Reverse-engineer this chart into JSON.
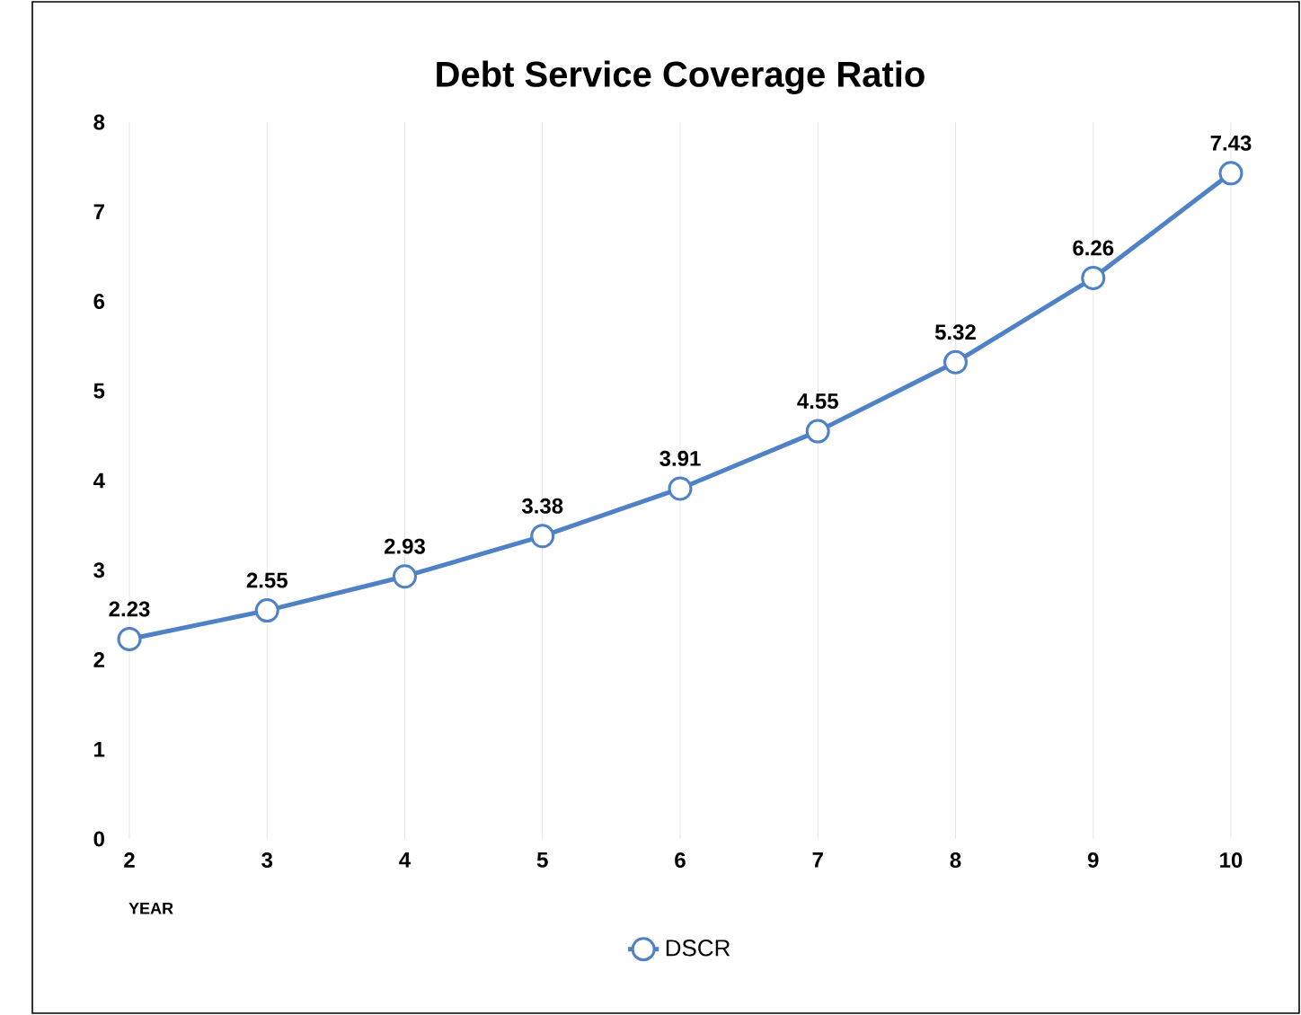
{
  "chart_data": {
    "type": "line",
    "title": "Debt Service Coverage Ratio",
    "xlabel": "YEAR",
    "x": [
      2,
      3,
      4,
      5,
      6,
      7,
      8,
      9,
      10
    ],
    "series": [
      {
        "name": "DSCR",
        "color": "#4f81c7",
        "values": [
          2.23,
          2.55,
          2.93,
          3.38,
          3.91,
          4.55,
          5.32,
          6.26,
          7.43
        ]
      }
    ],
    "xlim": [
      2,
      10
    ],
    "xticks": [
      2,
      3,
      4,
      5,
      6,
      7,
      8,
      9,
      10
    ],
    "ylim": [
      0,
      8
    ],
    "yticks": [
      0,
      1,
      2,
      3,
      4,
      5,
      6,
      7,
      8
    ],
    "grid": "x",
    "legend": "bottom",
    "marker": "circle",
    "line_style": "solid",
    "data_labels": true
  }
}
